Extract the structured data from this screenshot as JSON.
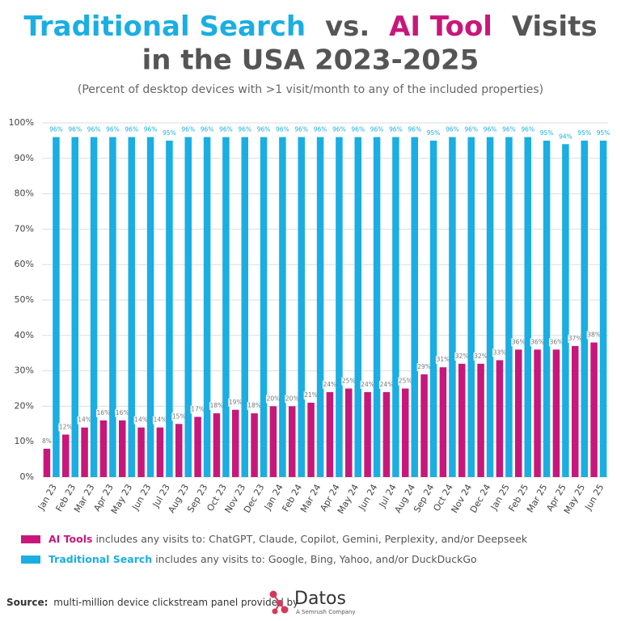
{
  "chart_data": {
    "type": "bar",
    "title": [
      "Traditional Search",
      "vs.",
      "AI Tool",
      "Visits",
      "in the USA 2023-2025"
    ],
    "subtitle": "(Percent of desktop devices with >1 visit/month to any of the included properties)",
    "categories": [
      "Jan 23",
      "Feb 23",
      "Mar 23",
      "Apr 23",
      "May 23",
      "Jun 23",
      "Jul 23",
      "Aug 23",
      "Sep 23",
      "Oct 23",
      "Nov 23",
      "Dec 23",
      "Jan 24",
      "Feb 24",
      "Mar 24",
      "Apr 24",
      "May 24",
      "Jun 24",
      "Jul 24",
      "Aug 24",
      "Sep 24",
      "Oct 24",
      "Nov 24",
      "Dec 24",
      "Jan 25",
      "Feb 25",
      "Mar 25",
      "Apr 25",
      "May 25",
      "Jun 25"
    ],
    "series": [
      {
        "name": "AI Tools",
        "color": "#c8177a",
        "description": "includes any visits to: ChatGPT, Claude, Copilot, Gemini, Perplexity, and/or Deepseek",
        "values": [
          8,
          12,
          14,
          16,
          16,
          14,
          14,
          15,
          17,
          18,
          19,
          18,
          20,
          20,
          21,
          24,
          25,
          24,
          24,
          25,
          29,
          31,
          32,
          32,
          33,
          36,
          36,
          36,
          37,
          38
        ],
        "value_labels": [
          "8%",
          "12%",
          "14%",
          "16%",
          "16%",
          "14%",
          "14%",
          "15%",
          "17%",
          "18%",
          "19%",
          "18%",
          "20%",
          "20%",
          "21%",
          "24%",
          "25%",
          "24%",
          "24%",
          "25%",
          "29%",
          "31%",
          "32%",
          "32%",
          "33%",
          "36%",
          "36%",
          "36%",
          "37%",
          "38%"
        ]
      },
      {
        "name": "Traditional Search",
        "color": "#1aaee2",
        "description": "includes any visits to: Google, Bing, Yahoo, and/or DuckDuckGo",
        "values": [
          96,
          96,
          96,
          96,
          96,
          96,
          95,
          96,
          96,
          96,
          96,
          96,
          96,
          96,
          96,
          96,
          96,
          96,
          96,
          96,
          95,
          96,
          96,
          96,
          96,
          96,
          95,
          94,
          95,
          95
        ],
        "value_labels": [
          "96%",
          "96%",
          "96%",
          "96%",
          "96%",
          "96%",
          "95%",
          "96%",
          "96%",
          "96%",
          "96%",
          "96%",
          "96%",
          "96%",
          "96%",
          "96%",
          "96%",
          "96%",
          "96%",
          "96%",
          "95%",
          "96%",
          "96%",
          "96%",
          "96%",
          "96%",
          "95%",
          "94%",
          "95%",
          "95%"
        ]
      }
    ],
    "ylim": [
      0,
      100
    ],
    "yticks": [
      {
        "value": 0,
        "label": "0%"
      },
      {
        "value": 10,
        "label": "10%"
      },
      {
        "value": 20,
        "label": "20%"
      },
      {
        "value": 30,
        "label": "30%"
      },
      {
        "value": 40,
        "label": "40%"
      },
      {
        "value": 50,
        "label": "50%"
      },
      {
        "value": 60,
        "label": "60%"
      },
      {
        "value": 70,
        "label": "70%"
      },
      {
        "value": 80,
        "label": "80%"
      },
      {
        "value": 90,
        "label": "90%"
      },
      {
        "value": 100,
        "label": "100%"
      }
    ],
    "grid": true,
    "source_label": "Source:",
    "source_text": "multi-million device clickstream panel provided by",
    "brand": "Datos",
    "brand_tagline": "A Semrush Company"
  }
}
